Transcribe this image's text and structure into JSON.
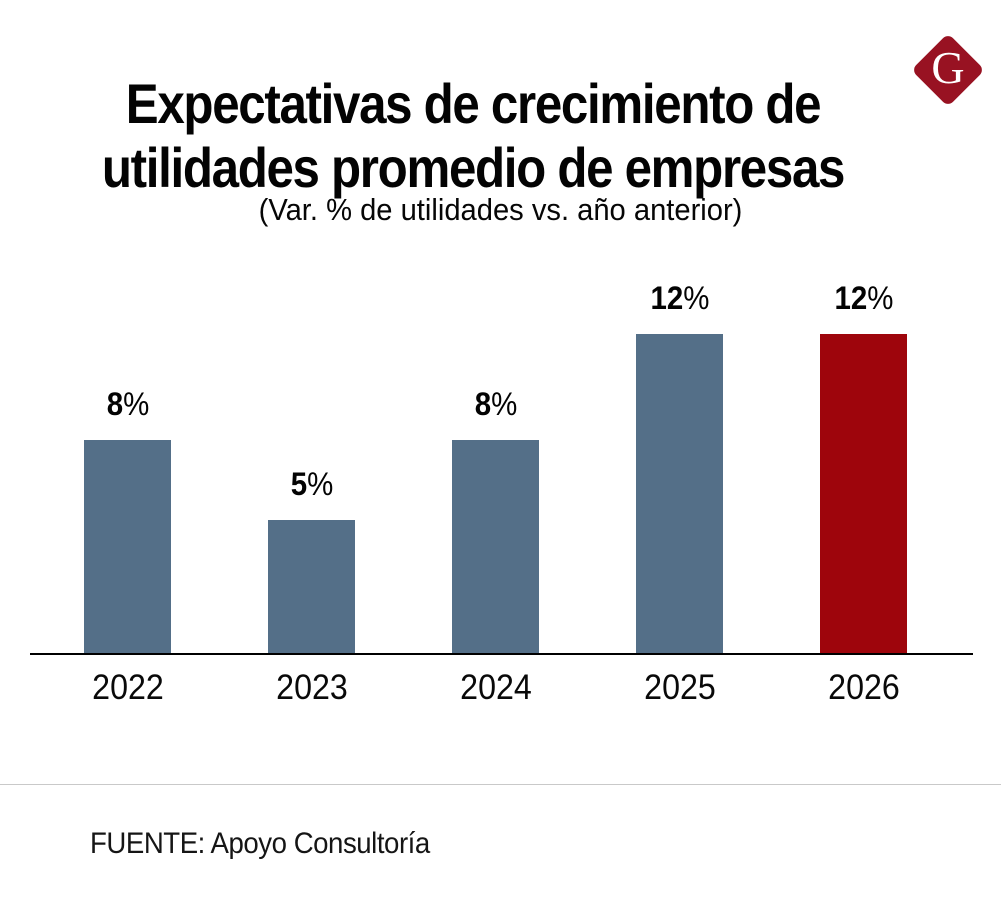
{
  "header": {
    "title_line1": "Expectativas de crecimiento de",
    "title_line2": "utilidades promedio de empresas",
    "subtitle": "(Var. % de utilidades vs. año anterior)"
  },
  "logo": {
    "letter": "G",
    "shape": "diamond",
    "background_color": "#981222",
    "letter_color": "#ffffff"
  },
  "chart_data": {
    "type": "bar",
    "title": "Expectativas de crecimiento de utilidades promedio de empresas",
    "subtitle": "(Var. % de utilidades vs. año anterior)",
    "categories": [
      "2022",
      "2023",
      "2024",
      "2025",
      "2026"
    ],
    "values": [
      8,
      5,
      8,
      12,
      12
    ],
    "value_labels": [
      "8%",
      "5%",
      "8%",
      "12%",
      "12%"
    ],
    "unit": "%",
    "default_bar_color": "#546F88",
    "highlight_bar_color": "#9E050C",
    "highlight_category": "2026",
    "bar_colors": [
      "#546F88",
      "#546F88",
      "#546F88",
      "#546F88",
      "#9E050C"
    ],
    "ylim": [
      0,
      13
    ],
    "grid": false,
    "legend": false,
    "y_axis_visible": false,
    "baseline_axis_color": "#000000"
  },
  "footer": {
    "source": "FUENTE: Apoyo Consultoría"
  }
}
